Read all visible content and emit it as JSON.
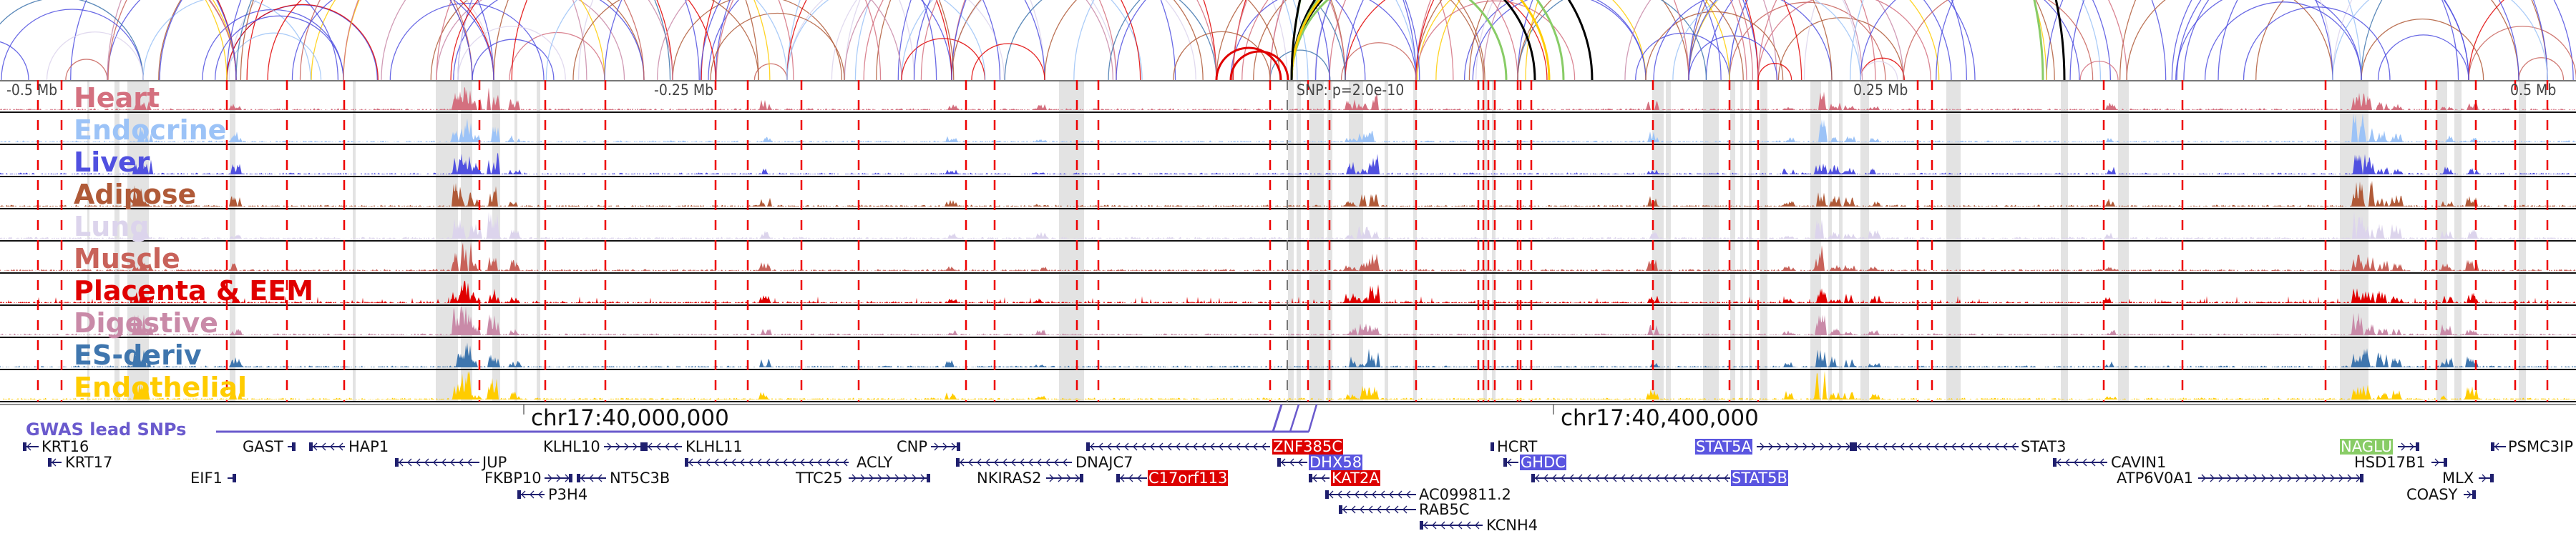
{
  "axis": {
    "left": "-0.5 Mb",
    "mid_left": "-0.25 Mb",
    "snp": "SNP: p=2.0e-10",
    "mid_right": "0.25 Mb",
    "right": "0.5 Mb"
  },
  "tracks": [
    {
      "name": "Heart",
      "color": "#d4707f"
    },
    {
      "name": "Endocrine",
      "color": "#9cc3f7"
    },
    {
      "name": "Liver",
      "color": "#5050e0"
    },
    {
      "name": "Adipose",
      "color": "#b05a38"
    },
    {
      "name": "Lung",
      "color": "#dcd4ec"
    },
    {
      "name": "Muscle",
      "color": "#c8625a"
    },
    {
      "name": "Placenta & EEM",
      "color": "#e00000"
    },
    {
      "name": "Digestive",
      "color": "#c98aa8"
    },
    {
      "name": "ES-deriv",
      "color": "#3f76ae"
    },
    {
      "name": "Endothelial",
      "color": "#ffcc00"
    }
  ],
  "coordinates": [
    "chr17:40,000,000",
    "chr17:40,400,000"
  ],
  "gwas": {
    "label": "GWAS lead SNPs",
    "color": "#6a5acd"
  },
  "gene_color": "#1f1f6e",
  "genes": [
    {
      "name": "KRT16"
    },
    {
      "name": "KRT17"
    },
    {
      "name": "GAST"
    },
    {
      "name": "HAP1"
    },
    {
      "name": "EIF1"
    },
    {
      "name": "JUP"
    },
    {
      "name": "KLHL10"
    },
    {
      "name": "KLHL11"
    },
    {
      "name": "FKBP10"
    },
    {
      "name": "NT5C3B"
    },
    {
      "name": "P3H4"
    },
    {
      "name": "ACLY"
    },
    {
      "name": "TTC25"
    },
    {
      "name": "CNP"
    },
    {
      "name": "ZNF385C",
      "highlight": "#dd0000"
    },
    {
      "name": "DNAJC7"
    },
    {
      "name": "NKIRAS2"
    },
    {
      "name": "C17orf113",
      "highlight": "#dd0000"
    },
    {
      "name": "DHX58",
      "highlight": "#5a55e0"
    },
    {
      "name": "KAT2A",
      "highlight": "#dd0000"
    },
    {
      "name": "AC099811.2"
    },
    {
      "name": "RAB5C"
    },
    {
      "name": "KCNH4"
    },
    {
      "name": "HCRT"
    },
    {
      "name": "GHDC",
      "highlight": "#5a55e0"
    },
    {
      "name": "STAT5A",
      "highlight": "#5a55e0"
    },
    {
      "name": "STAT3"
    },
    {
      "name": "STAT5B",
      "highlight": "#5a55e0"
    },
    {
      "name": "CAVIN1"
    },
    {
      "name": "ATP6V0A1"
    },
    {
      "name": "NAGLU",
      "highlight": "#88cc66"
    },
    {
      "name": "HSD17B1"
    },
    {
      "name": "MLX"
    },
    {
      "name": "COASY"
    },
    {
      "name": "PSMC3IP"
    }
  ]
}
